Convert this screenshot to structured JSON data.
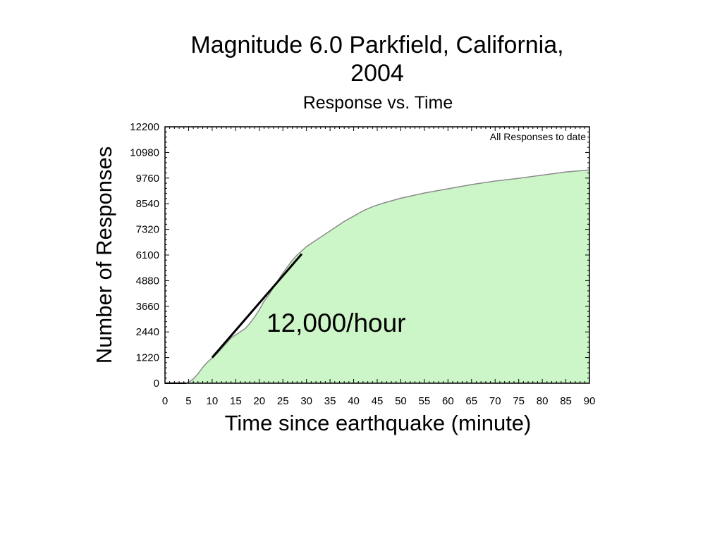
{
  "slide": {
    "title_line1": "Magnitude 6.0 Parkfield, California,",
    "title_line2": "2004"
  },
  "chart_data": {
    "type": "area",
    "title": "Response vs. Time",
    "xlabel": "Time since earthquake (minute)",
    "ylabel": "Number of Responses",
    "xlim": [
      0,
      90
    ],
    "ylim": [
      0,
      12200
    ],
    "x_ticks": [
      0,
      5,
      10,
      15,
      20,
      25,
      30,
      35,
      40,
      45,
      50,
      55,
      60,
      65,
      70,
      75,
      80,
      85,
      90
    ],
    "y_ticks": [
      0,
      1220,
      2440,
      3660,
      4880,
      6100,
      7320,
      8540,
      9760,
      10980,
      12200
    ],
    "grid": false,
    "fill_color": "#ccf5c8",
    "outline_color": "#8c8c8c",
    "series": [
      {
        "name": "All Responses to date",
        "x": [
          0,
          4.5,
          5,
          6,
          7,
          8,
          9,
          10,
          11,
          12,
          13,
          14,
          15,
          16,
          17,
          18,
          19,
          20,
          21,
          22,
          23,
          24,
          25,
          26,
          27,
          28,
          29,
          30,
          32,
          34,
          36,
          38,
          40,
          42,
          44,
          46,
          50,
          55,
          60,
          65,
          70,
          75,
          80,
          85,
          90
        ],
        "values": [
          0,
          0,
          50,
          200,
          450,
          750,
          1000,
          1200,
          1400,
          1650,
          1900,
          2150,
          2300,
          2450,
          2600,
          2850,
          3150,
          3500,
          3900,
          4200,
          4550,
          4900,
          5250,
          5550,
          5850,
          6100,
          6300,
          6500,
          6800,
          7100,
          7400,
          7700,
          7950,
          8200,
          8400,
          8550,
          8800,
          9050,
          9250,
          9450,
          9620,
          9750,
          9900,
          10050,
          10150
        ]
      }
    ],
    "annotations": [
      {
        "text": "All Responses to date",
        "placement": "top-right"
      },
      {
        "text": "12,000/hour",
        "kind": "rate-line",
        "x": [
          10,
          29
        ],
        "values": [
          1220,
          6150
        ]
      }
    ]
  }
}
